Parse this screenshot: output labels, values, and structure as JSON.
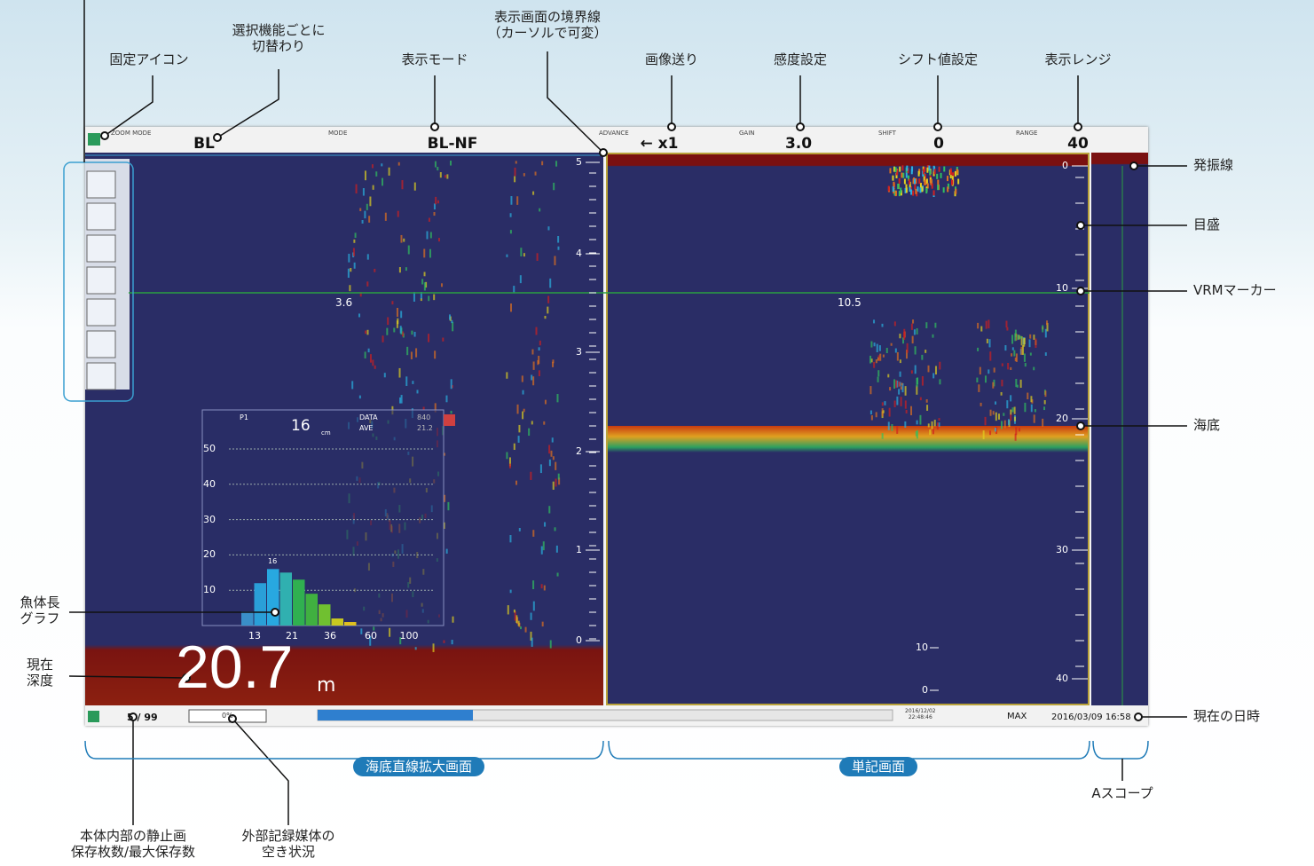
{
  "annotations": {
    "fixed_icon": "固定アイコン",
    "switch_by_function": "選択機能ごとに\n切替わり",
    "display_mode": "表示モード",
    "boundary": "表示画面の境界線\n（カーソルで可変）",
    "advance": "画像送り",
    "gain": "感度設定",
    "shift": "シフト値設定",
    "range": "表示レンジ",
    "tx_line": "発振線",
    "scale": "目盛",
    "vrm": "VRMマーカー",
    "seabed": "海底",
    "fish_graph": "魚体長\nグラフ",
    "current_depth": "現在\n深度",
    "datetime": "現在の日時",
    "still_count": "本体内部の静止画\n保存枚数/最大保存数",
    "media_free": "外部記録媒体の\n空き状況",
    "bl_screen": "海底直線拡大画面",
    "single_screen": "単記画面",
    "a_scope": "Aスコープ"
  },
  "header": {
    "zoom_mode_label": "ZOOM MODE",
    "zoom_mode": "BL",
    "mode_label": "MODE",
    "mode": "BL-NF",
    "advance_label": "ADVANCE",
    "advance": "← x1",
    "gain_label": "GAIN",
    "gain": "3.0",
    "shift_label": "SHIFT",
    "shift": "0",
    "range_label": "RANGE",
    "range": "40"
  },
  "left_scale": [
    5,
    4,
    3,
    2,
    1,
    0
  ],
  "right_scale": [
    0,
    10,
    20,
    30,
    40
  ],
  "vrm_left": "3.6",
  "vrm_right": "10.5",
  "depth": "20.7",
  "depth_unit": "m",
  "fish_length_graph": {
    "p_label": "P1",
    "p_value": "16",
    "p_unit": "cm",
    "data_label": "DATA",
    "data_value": "840",
    "ave_label": "AVE",
    "ave_value": "21.2",
    "cursor_label": "16",
    "ylim": [
      0,
      50
    ],
    "yticks": [
      50,
      40,
      30,
      20,
      10
    ],
    "xlabels": [
      "13",
      "21",
      "36",
      "60",
      "100"
    ],
    "bars": [
      4,
      12,
      16,
      15,
      13,
      9,
      6,
      2,
      1
    ]
  },
  "status": {
    "still": "5 / 99",
    "media": "0%",
    "history_time": "2016/12/02\n22:48:46",
    "max": "MAX",
    "now": "2016/03/09 16:58"
  },
  "mini_scale": [
    10,
    0
  ]
}
